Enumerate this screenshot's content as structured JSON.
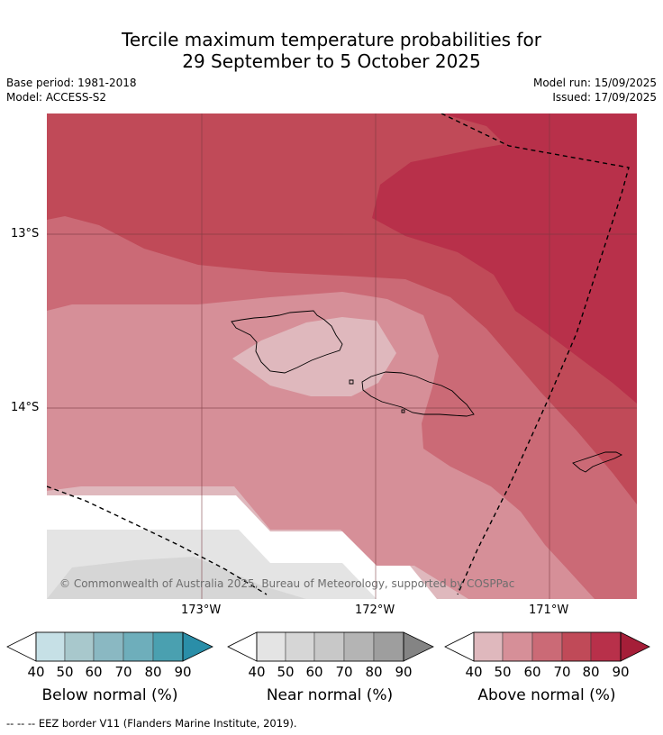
{
  "title_line1": "Tercile maximum temperature probabilities for",
  "title_line2": "29 September to 5 October 2025",
  "meta": {
    "base_period": "Base period: 1981-2018",
    "model": "Model: ACCESS-S2",
    "model_run": "Model run: 15/09/2025",
    "issued": "Issued: 17/09/2025"
  },
  "map": {
    "lat_ticks": [
      "13°S",
      "14°S"
    ],
    "lon_ticks": [
      "173°W",
      "172°W",
      "171°W"
    ],
    "copyright": "© Commonwealth of Australia 2025, Bureau of Meteorology, supported by COSPPac",
    "colors": {
      "above": [
        "#dfb8bd",
        "#d68f98",
        "#cb6a76",
        "#c04a58",
        "#b8304a",
        "#a51e38"
      ],
      "near": [
        "#e4e4e4",
        "#d6d6d6",
        "#c8c8c8",
        "#b4b4b4",
        "#9e9e9e",
        "#848484"
      ],
      "below": [
        "#c6e0e6",
        "#a8c8cc",
        "#8ab8c2",
        "#6eaebb",
        "#4aa0b0",
        "#2a8ea8"
      ]
    }
  },
  "colorbars": [
    {
      "title": "Below normal (%)",
      "labels": [
        "40",
        "50",
        "60",
        "70",
        "80",
        "90"
      ]
    },
    {
      "title": "Near normal (%)",
      "labels": [
        "40",
        "50",
        "60",
        "70",
        "80",
        "90"
      ]
    },
    {
      "title": "Above normal (%)",
      "labels": [
        "40",
        "50",
        "60",
        "70",
        "80",
        "90"
      ]
    }
  ],
  "footnote": "--  --  -- EEZ border V11 (Flanders Marine Institute, 2019)."
}
